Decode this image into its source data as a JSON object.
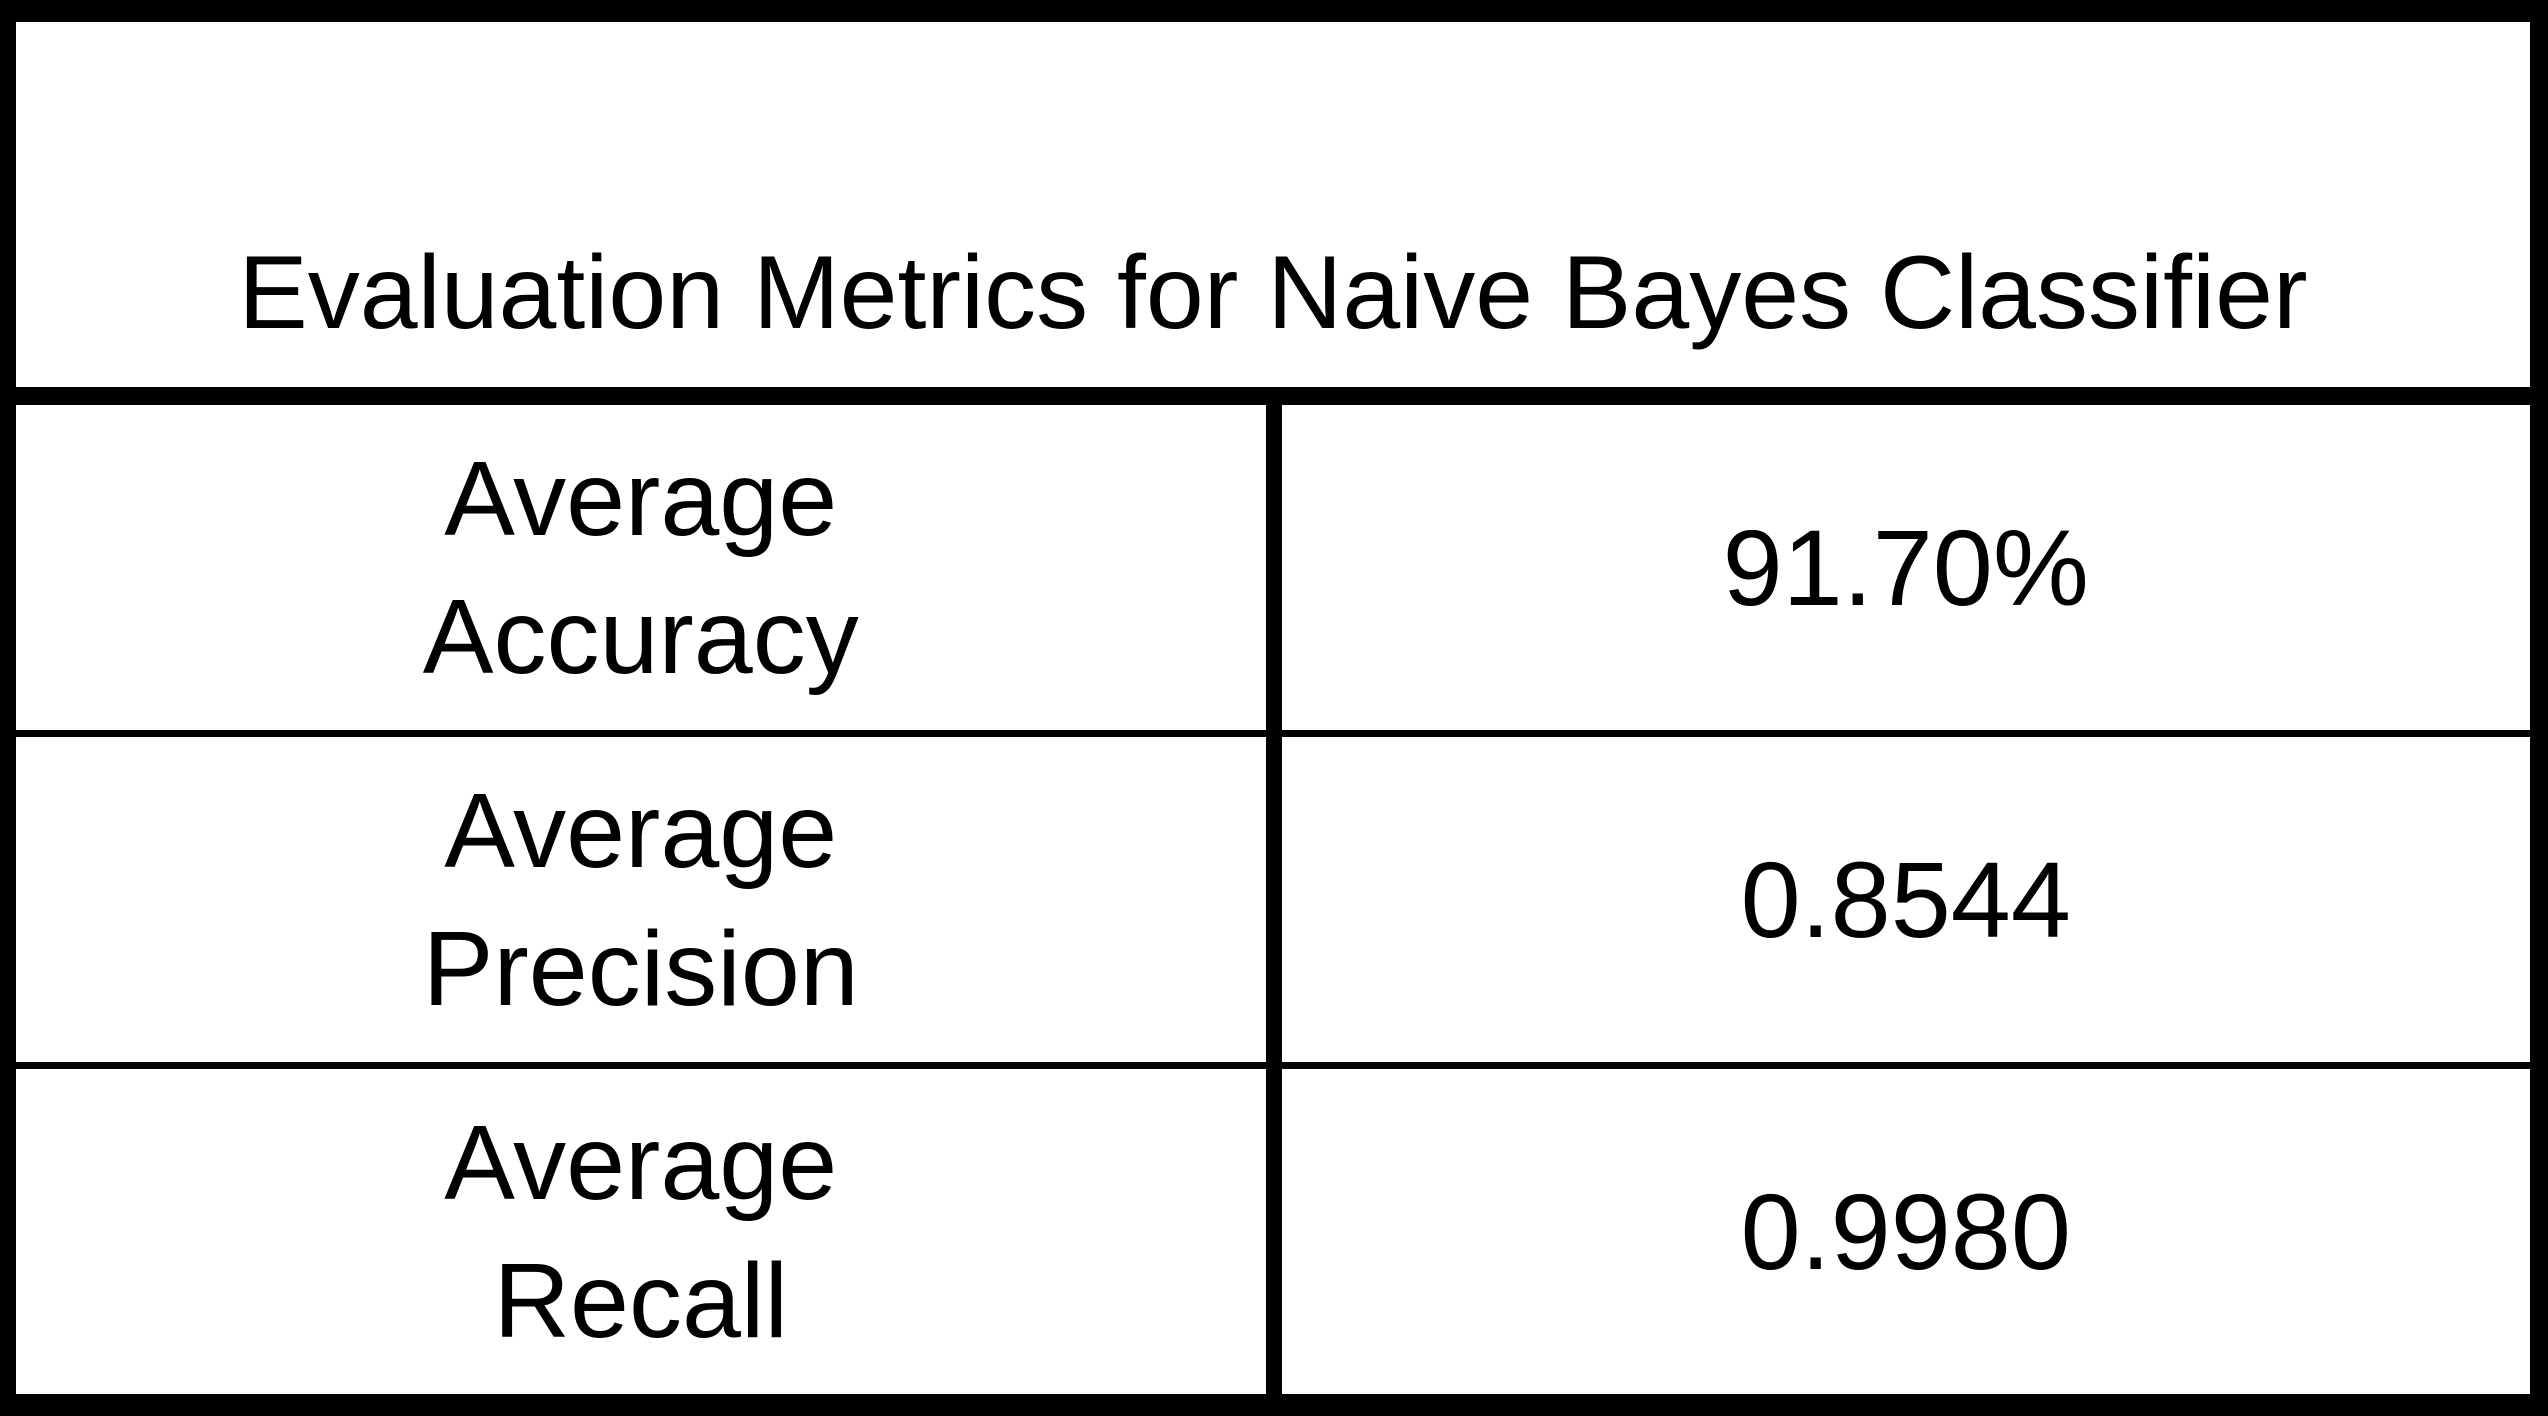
{
  "table": {
    "title": "Evaluation Metrics for Naive Bayes Classifier",
    "rows": [
      {
        "label_line1": "Average",
        "label_line2": "Accuracy",
        "value": "91.70%"
      },
      {
        "label_line1": "Average",
        "label_line2": "Precision",
        "value": "0.8544"
      },
      {
        "label_line1": "Average",
        "label_line2": "Recall",
        "value": "0.9980"
      }
    ]
  }
}
